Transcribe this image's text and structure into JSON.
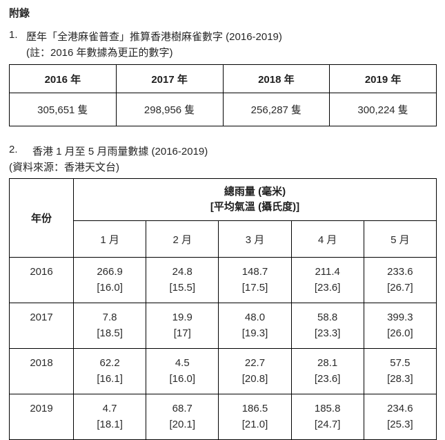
{
  "doc": {
    "title": "附錄"
  },
  "section1": {
    "number": "1.",
    "heading": "歷年「全港麻雀普查」推算香港樹麻雀數字 (2016-2019)",
    "note": "(註：2016 年數據為更正的數字)",
    "table": {
      "headers": [
        "2016 年",
        "2017 年",
        "2018 年",
        "2019 年"
      ],
      "values": [
        "305,651 隻",
        "298,956 隻",
        "256,287 隻",
        "300,224 隻"
      ]
    }
  },
  "section2": {
    "number": "2.",
    "heading": "香港 1 月至 5 月雨量數據 (2016-2019)",
    "source": "(資料來源：香港天文台)",
    "table": {
      "year_header": "年份",
      "main_header_line1": "總雨量 (毫米)",
      "main_header_line2": "[平均氣溫 (攝氏度)]",
      "months": [
        "1 月",
        "2 月",
        "3 月",
        "4 月",
        "5 月"
      ],
      "rows": [
        {
          "year": "2016",
          "cells": [
            [
              "266.9",
              "[16.0]"
            ],
            [
              "24.8",
              "[15.5]"
            ],
            [
              "148.7",
              "[17.5]"
            ],
            [
              "211.4",
              "[23.6]"
            ],
            [
              "233.6",
              "[26.7]"
            ]
          ]
        },
        {
          "year": "2017",
          "cells": [
            [
              "7.8",
              "[18.5]"
            ],
            [
              "19.9",
              "[17]"
            ],
            [
              "48.0",
              "[19.3]"
            ],
            [
              "58.8",
              "[23.3]"
            ],
            [
              "399.3",
              "[26.0]"
            ]
          ]
        },
        {
          "year": "2018",
          "cells": [
            [
              "62.2",
              "[16.1]"
            ],
            [
              "4.5",
              "[16.0]"
            ],
            [
              "22.7",
              "[20.8]"
            ],
            [
              "28.1",
              "[23.6]"
            ],
            [
              "57.5",
              "[28.3]"
            ]
          ]
        },
        {
          "year": "2019",
          "cells": [
            [
              "4.7",
              "[18.1]"
            ],
            [
              "68.7",
              "[20.1]"
            ],
            [
              "186.5",
              "[21.0]"
            ],
            [
              "185.8",
              "[24.7]"
            ],
            [
              "234.6",
              "[25.3]"
            ]
          ]
        }
      ]
    }
  }
}
